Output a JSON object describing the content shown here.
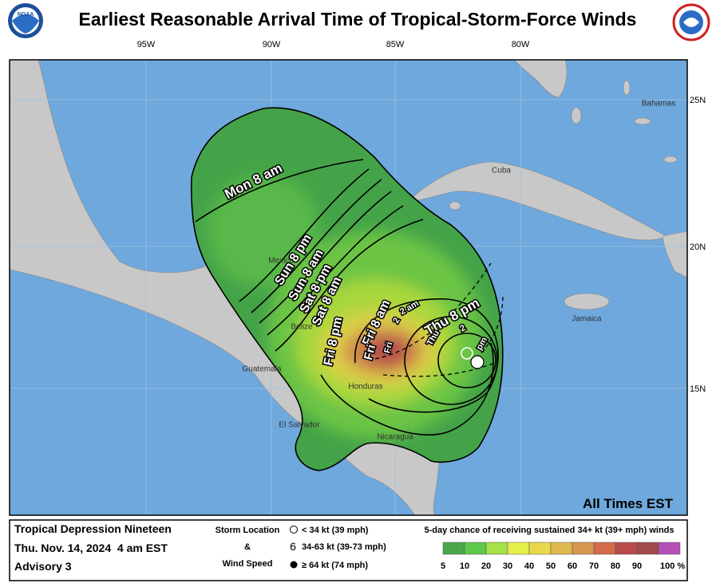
{
  "header": {
    "title": "Earliest Reasonable Arrival Time of Tropical-Storm-Force Winds",
    "logo": "NOAA"
  },
  "map": {
    "lon_labels": [
      "95W",
      "90W",
      "85W",
      "80W"
    ],
    "lat_labels": [
      "25N",
      "20N",
      "15N"
    ],
    "places": [
      "Mexico",
      "Belize",
      "Guatemala",
      "Honduras",
      "El Salvador",
      "Nicaragua",
      "Cuba",
      "Jamaica",
      "Bahamas"
    ],
    "time_labels": [
      "Mon 8 am",
      "Sun 8 pm",
      "Sun 8 am",
      "Sat 8 pm",
      "Sat 8 am",
      "Fri 8 pm",
      "Fri 8 am",
      "Thu 8 pm",
      "Fri",
      "2 am",
      "Fri",
      "2",
      "Thu",
      "2",
      "pm"
    ],
    "note": "All Times EST"
  },
  "footer": {
    "storm": {
      "name": "Tropical Depression Nineteen",
      "time": "Thu. Nov. 14, 2024  4 am EST",
      "advisory": "Advisory 3"
    },
    "key": {
      "title": "Storm Location",
      "amp": "&",
      "subtitle": "Wind Speed",
      "items": [
        "< 34 kt (39 mph)",
        "34-63 kt (39-73 mph)",
        "≥ 64 kt (74 mph)"
      ]
    },
    "scale": {
      "title": "5-day chance of receiving sustained 34+ kt (39+ mph) winds",
      "labels": [
        "5",
        "10",
        "20",
        "30",
        "40",
        "50",
        "60",
        "70",
        "80",
        "90",
        "100 %"
      ]
    }
  }
}
